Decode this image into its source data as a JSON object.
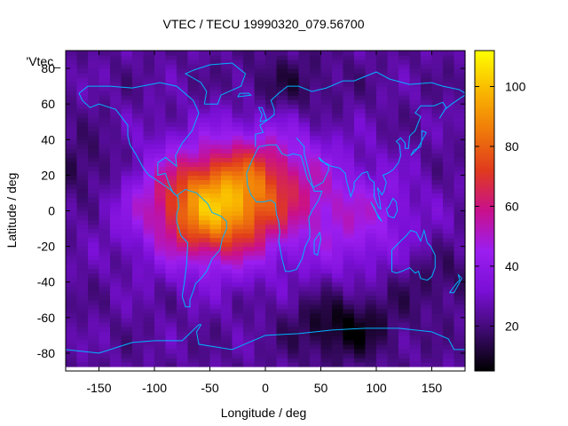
{
  "chart_data": {
    "type": "heatmap",
    "title": "VTEC / TECU 19990320_079.56700",
    "xlabel": "Longitude / deg",
    "ylabel": "Latitude / deg",
    "series_label": "'Vtec_",
    "xlim": [
      -180,
      180
    ],
    "ylim": [
      -90,
      90
    ],
    "xticks": [
      -150,
      -100,
      -50,
      0,
      50,
      100,
      150
    ],
    "yticks": [
      -80,
      -60,
      -40,
      -20,
      0,
      20,
      40,
      60,
      80
    ],
    "colorbar": {
      "range": [
        5,
        112
      ],
      "ticks": [
        20,
        40,
        60,
        80,
        100
      ],
      "palette": [
        "#000000",
        "#3d0a6e",
        "#7a0fd6",
        "#9b1ef0",
        "#c9108c",
        "#e03a1e",
        "#f07a0a",
        "#f9b800",
        "#ffff00"
      ]
    },
    "grid": {
      "lon_start": -180,
      "lon_step": 10,
      "lat_start": -87.5,
      "lat_step": 2.5
    },
    "features": {
      "base": 24,
      "peaks": [
        {
          "lon": -45,
          "lat": 0,
          "value": 60
        },
        {
          "lon": 0,
          "lat": 20,
          "value": 30
        },
        {
          "lon": 80,
          "lat": -5,
          "value": 22
        },
        {
          "lon": -90,
          "lat": 10,
          "value": 12
        }
      ],
      "lows": [
        {
          "lon": 70,
          "lat": -65,
          "value": -18
        },
        {
          "lon": -160,
          "lat": 25,
          "value": -10
        },
        {
          "lon": 20,
          "lat": 70,
          "value": -10
        },
        {
          "lon": 150,
          "lat": -40,
          "value": -8
        }
      ]
    }
  },
  "colors": {
    "coastline": "#00b4ff",
    "frame": "#000000"
  }
}
